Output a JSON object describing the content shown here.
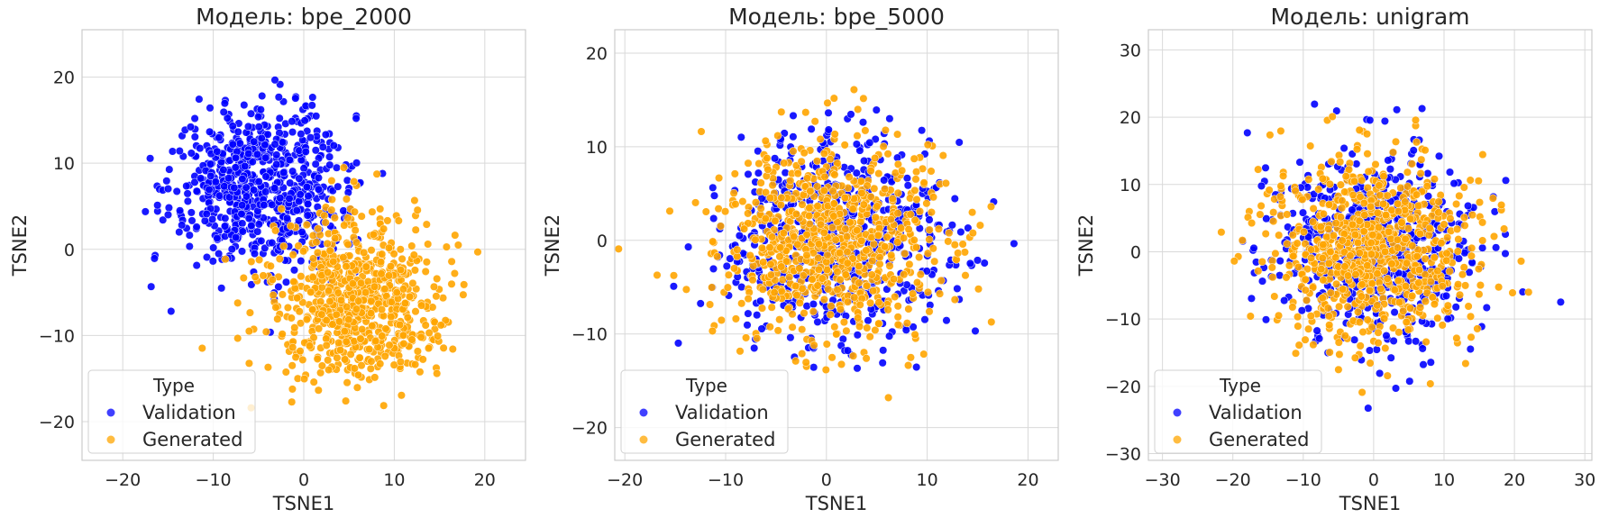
{
  "colors": {
    "validation": "#0000ff",
    "generated": "#ffa500",
    "grid": "#d9d9d9",
    "axes_edge": "#cccccc",
    "text": "#262626"
  },
  "chart_data": [
    {
      "type": "scatter",
      "title": "Модель: bpe_2000",
      "xlabel": "TSNE1",
      "ylabel": "TSNE2",
      "xlim": [
        -24.5,
        24.5
      ],
      "ylim": [
        -24.5,
        25.5
      ],
      "xticks": [
        -20,
        -10,
        0,
        10,
        20
      ],
      "yticks": [
        -20,
        -10,
        0,
        10,
        20
      ],
      "grid": true,
      "legend": {
        "title": "Type",
        "placement": "lower-left",
        "entries": [
          "Validation",
          "Generated"
        ]
      },
      "series": [
        {
          "name": "Validation",
          "cluster": {
            "center": [
              -5,
              7
            ],
            "spread": [
              9,
              9
            ],
            "count": 700,
            "radius": 21
          }
        },
        {
          "name": "Generated",
          "cluster": {
            "center": [
              6,
              -6
            ],
            "spread": [
              9,
              9
            ],
            "count": 750,
            "radius": 21
          }
        }
      ]
    },
    {
      "type": "scatter",
      "title": "Модель: bpe_5000",
      "xlabel": "TSNE1",
      "ylabel": "TSNE2",
      "xlim": [
        -21,
        23
      ],
      "ylim": [
        -23.5,
        22.5
      ],
      "xticks": [
        -20,
        -10,
        0,
        10,
        20
      ],
      "yticks": [
        -20,
        -10,
        0,
        10,
        20
      ],
      "grid": true,
      "legend": {
        "title": "Type",
        "placement": "lower-left",
        "entries": [
          "Validation",
          "Generated"
        ]
      },
      "series": [
        {
          "name": "Validation",
          "cluster": {
            "center": [
              1,
              0
            ],
            "spread": [
              10,
              10
            ],
            "count": 650,
            "radius": 20
          }
        },
        {
          "name": "Generated",
          "cluster": {
            "center": [
              0,
              0
            ],
            "spread": [
              10,
              10
            ],
            "count": 800,
            "radius": 20
          }
        }
      ]
    },
    {
      "type": "scatter",
      "title": "Модель: unigram",
      "xlabel": "TSNE1",
      "ylabel": "TSNE2",
      "xlim": [
        -32,
        31
      ],
      "ylim": [
        -31,
        33
      ],
      "xticks": [
        -30,
        -20,
        -10,
        0,
        10,
        20,
        30
      ],
      "yticks": [
        -30,
        -20,
        -10,
        0,
        10,
        20,
        30
      ],
      "grid": true,
      "legend": {
        "title": "Type",
        "placement": "lower-left",
        "entries": [
          "Validation",
          "Generated"
        ]
      },
      "series": [
        {
          "name": "Validation",
          "cluster": {
            "center": [
              0,
              0
            ],
            "spread": [
              13,
              13
            ],
            "count": 650,
            "radius": 28
          }
        },
        {
          "name": "Generated",
          "cluster": {
            "center": [
              0,
              0
            ],
            "spread": [
              13,
              13
            ],
            "count": 800,
            "radius": 28
          }
        }
      ]
    }
  ]
}
